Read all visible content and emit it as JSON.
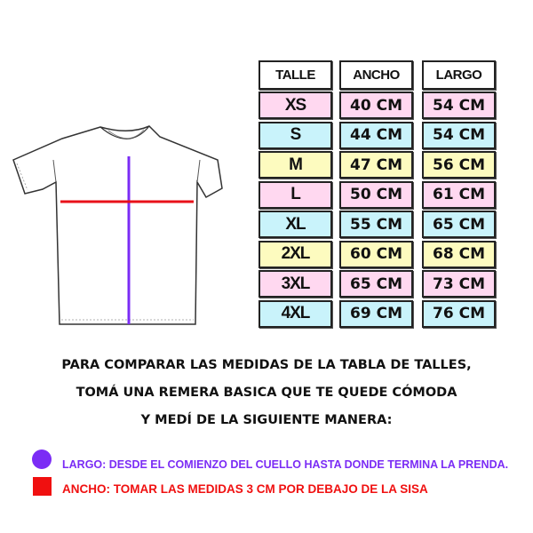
{
  "table": {
    "headers": [
      "TALLE",
      "ANCHO",
      "LARGO"
    ],
    "rows": [
      {
        "talle": "XS",
        "ancho": "40 CM",
        "largo": "54 CM",
        "color": "#ffd8f0"
      },
      {
        "talle": "S",
        "ancho": "44 CM",
        "largo": "54 CM",
        "color": "#c9f3fb"
      },
      {
        "talle": "M",
        "ancho": "47 CM",
        "largo": "56 CM",
        "color": "#fdfbbf"
      },
      {
        "talle": "L",
        "ancho": "50 CM",
        "largo": "61 CM",
        "color": "#ffd8f0"
      },
      {
        "talle": "XL",
        "ancho": "55 CM",
        "largo": "65 CM",
        "color": "#c9f3fb"
      },
      {
        "talle": "2XL",
        "ancho": "60 CM",
        "largo": "68 CM",
        "color": "#fdfbbf"
      },
      {
        "talle": "3XL",
        "ancho": "65 CM",
        "largo": "73 CM",
        "color": "#ffd8f0"
      },
      {
        "talle": "4XL",
        "ancho": "69 CM",
        "largo": "76 CM",
        "color": "#c9f3fb"
      }
    ]
  },
  "instructions": [
    "PARA COMPARAR LAS MEDIDAS DE LA TABLA DE TALLES,",
    "TOMÁ UNA REMERA BASICA QUE TE QUEDE CÓMODA",
    "Y MEDÍ DE LA SIGUIENTE MANERA:"
  ],
  "legend": [
    {
      "text": "LARGO: DESDE EL COMIENZO DEL CUELLO HASTA DONDE TERMINA LA PRENDA.",
      "color": "#7b2cf5",
      "icon": "circle-icon"
    },
    {
      "text": "ANCHO: TOMAR LAS MEDIDAS 3 CM POR DEBAJO DE LA SISA",
      "color": "#f01010",
      "icon": "square-icon"
    }
  ]
}
